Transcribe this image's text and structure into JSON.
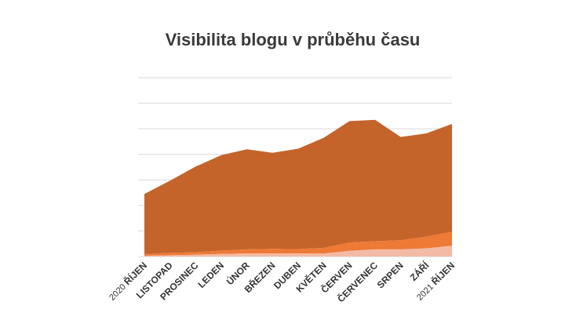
{
  "chart_data": {
    "type": "area",
    "stacked": true,
    "title": "Visibilita blogu v průběhu času",
    "categories": [
      {
        "year": "2020",
        "label": "ŘÍJEN"
      },
      {
        "year": "",
        "label": "LISTOPAD"
      },
      {
        "year": "",
        "label": "PROSINEC"
      },
      {
        "year": "",
        "label": "LEDEN"
      },
      {
        "year": "",
        "label": "ÚNOR"
      },
      {
        "year": "",
        "label": "BŘEZEN"
      },
      {
        "year": "",
        "label": "DUBEN"
      },
      {
        "year": "",
        "label": "KVĚTEN"
      },
      {
        "year": "",
        "label": "ČERVEN"
      },
      {
        "year": "",
        "label": "ČERVENEC"
      },
      {
        "year": "",
        "label": "SRPEN"
      },
      {
        "year": "",
        "label": "ZÁŘÍ"
      },
      {
        "year": "2021",
        "label": "ŘÍJEN"
      }
    ],
    "ylim": [
      0,
      7
    ],
    "y_tick_count": 8,
    "y_tick_labels_shown": false,
    "grid": true,
    "legend": "none",
    "series": [
      {
        "color": "#f3bba6",
        "values": [
          0.03,
          0.05,
          0.07,
          0.1,
          0.12,
          0.12,
          0.12,
          0.12,
          0.22,
          0.28,
          0.28,
          0.32,
          0.42
        ]
      },
      {
        "color": "#ee7a36",
        "values": [
          0.07,
          0.09,
          0.1,
          0.13,
          0.16,
          0.18,
          0.17,
          0.22,
          0.33,
          0.32,
          0.36,
          0.46,
          0.55
        ]
      },
      {
        "color": "#c4642a",
        "values": [
          2.35,
          2.83,
          3.35,
          3.74,
          3.92,
          3.76,
          3.93,
          4.31,
          4.75,
          4.75,
          4.04,
          4.04,
          4.22
        ]
      }
    ]
  }
}
